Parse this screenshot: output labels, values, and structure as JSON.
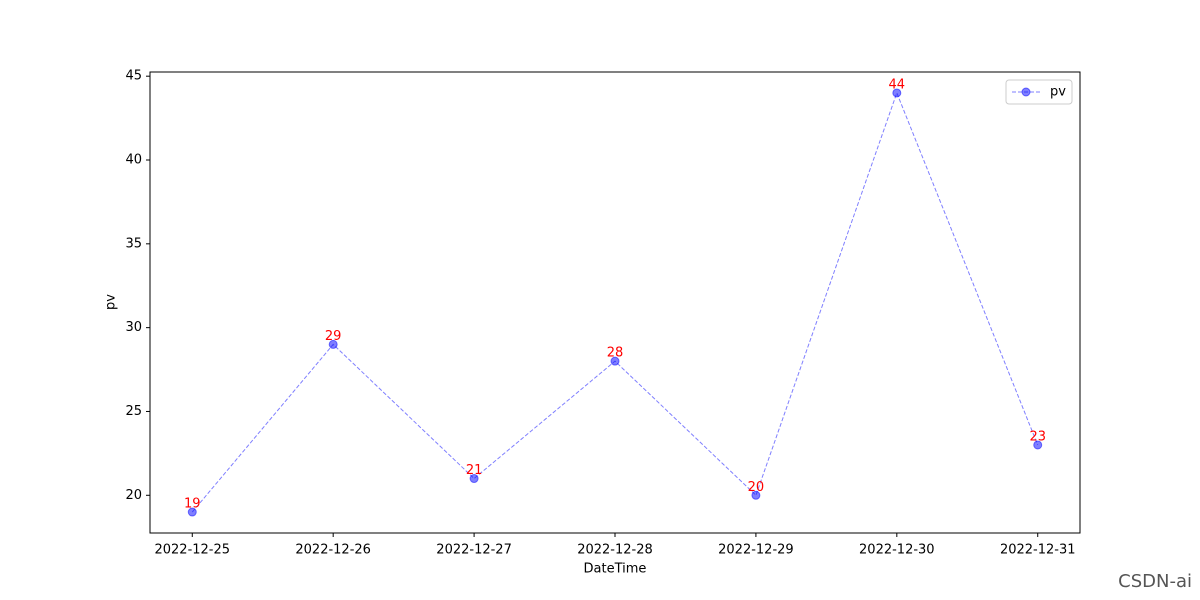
{
  "chart_data": {
    "type": "line",
    "xlabel": "DateTime",
    "ylabel": "pv",
    "x": [
      "2022-12-25",
      "2022-12-26",
      "2022-12-27",
      "2022-12-28",
      "2022-12-29",
      "2022-12-30",
      "2022-12-31"
    ],
    "series": [
      {
        "name": "pv",
        "color": "#0000ff",
        "values": [
          19,
          29,
          21,
          28,
          20,
          44,
          23
        ]
      }
    ],
    "ylim": [
      17.75,
      45.25
    ],
    "yticks": [
      20,
      25,
      30,
      35,
      40,
      45
    ],
    "legend": "upper right",
    "label_color": "#ff0000",
    "grid": false
  },
  "watermark": "CSDN-ai"
}
